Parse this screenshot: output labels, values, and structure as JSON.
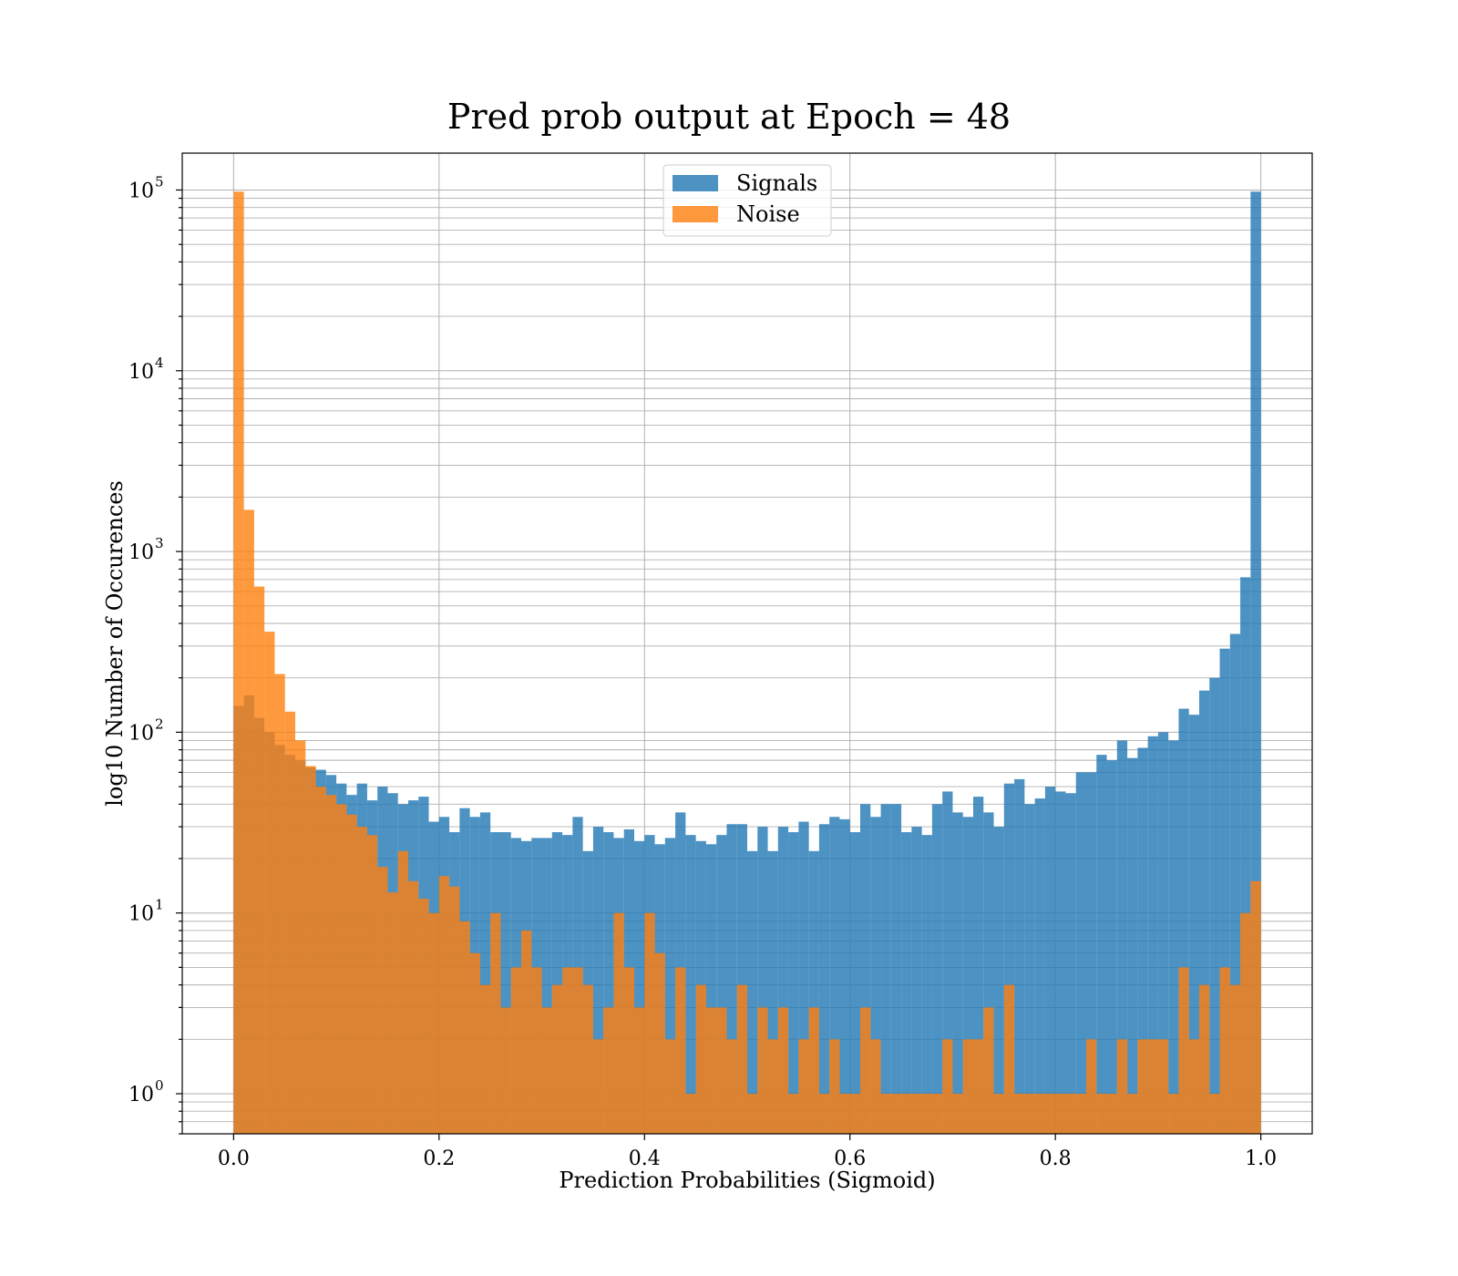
{
  "chart_data": {
    "type": "histogram",
    "title": "Pred prob output at Epoch = 48",
    "xlabel": "Prediction Probabilities (Sigmoid)",
    "ylabel": "log10 Number of Occurences",
    "yscale": "log",
    "xlim": [
      -0.05,
      1.05
    ],
    "ylim": [
      0.6,
      160000
    ],
    "xticks": [
      "0.0",
      "0.2",
      "0.4",
      "0.6",
      "0.8",
      "1.0"
    ],
    "yticks": [
      {
        "base": "10",
        "exp": "0"
      },
      {
        "base": "10",
        "exp": "1"
      },
      {
        "base": "10",
        "exp": "2"
      },
      {
        "base": "10",
        "exp": "3"
      },
      {
        "base": "10",
        "exp": "4"
      },
      {
        "base": "10",
        "exp": "5"
      }
    ],
    "grid": true,
    "legend_position": "top-center",
    "bins": 100,
    "bin_range": [
      0,
      1
    ],
    "series": [
      {
        "name": "Signals",
        "color": "#1f77b4",
        "alpha": 0.8,
        "values": [
          140,
          160,
          120,
          100,
          85,
          75,
          70,
          64,
          62,
          58,
          52,
          45,
          52,
          42,
          50,
          46,
          40,
          42,
          44,
          32,
          34,
          28,
          38,
          34,
          36,
          28,
          28,
          26,
          25,
          26,
          26,
          28,
          27,
          34,
          22,
          30,
          28,
          26,
          29,
          25,
          27,
          24,
          26,
          36,
          27,
          25,
          24,
          27,
          31,
          31,
          22,
          30,
          22,
          30,
          28,
          32,
          22,
          31,
          34,
          33,
          28,
          40,
          34,
          40,
          40,
          28,
          30,
          27,
          40,
          47,
          36,
          34,
          44,
          36,
          30,
          52,
          55,
          40,
          43,
          50,
          47,
          46,
          60,
          60,
          75,
          70,
          90,
          72,
          82,
          95,
          100,
          90,
          135,
          125,
          170,
          200,
          290,
          350,
          720,
          98000
        ]
      },
      {
        "name": "Noise",
        "color": "#ff7f0e",
        "alpha": 0.8,
        "values": [
          98000,
          1700,
          640,
          360,
          210,
          130,
          90,
          65,
          50,
          45,
          40,
          35,
          30,
          27,
          18,
          13,
          22,
          15,
          12,
          10,
          16,
          14,
          9,
          6,
          4,
          10,
          3,
          5,
          8,
          5,
          3,
          4,
          5,
          5,
          4,
          2,
          3,
          10,
          5,
          3,
          10,
          6,
          2,
          5,
          1,
          4,
          3,
          3,
          2,
          4,
          1,
          3,
          2,
          3,
          1,
          2,
          3,
          1,
          2,
          1,
          1,
          3,
          2,
          1,
          1,
          1,
          1,
          1,
          1,
          2,
          1,
          2,
          2,
          3,
          1,
          4,
          1,
          1,
          1,
          1,
          1,
          1,
          1,
          2,
          1,
          1,
          2,
          1,
          2,
          2,
          2,
          1,
          5,
          2,
          4,
          1,
          5,
          4,
          10,
          15
        ]
      }
    ]
  }
}
